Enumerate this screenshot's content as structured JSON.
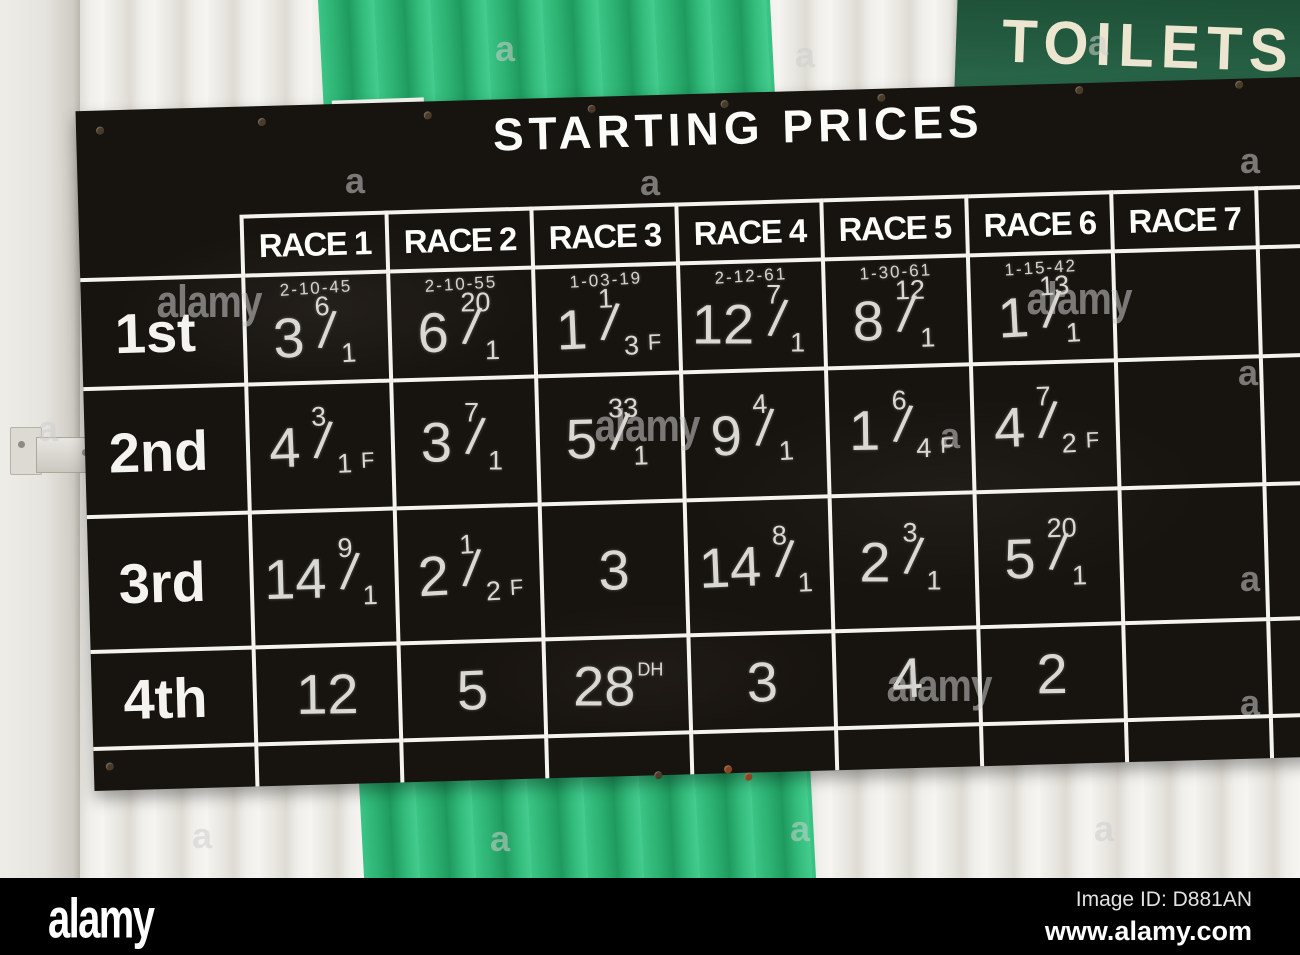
{
  "photo": {
    "toilets_sign": "TOILETS",
    "board_title": "STARTING PRICES",
    "row_labels": [
      "1st",
      "2nd",
      "3rd",
      "4th"
    ],
    "races": [
      {
        "label": "RACE 1",
        "time": "2-10-45",
        "results": [
          {
            "num": "3",
            "odds": "6/1"
          },
          {
            "num": "4",
            "odds": "3/1",
            "fav": true
          },
          {
            "num": "14",
            "odds": "9/1"
          },
          {
            "num": "12"
          }
        ]
      },
      {
        "label": "RACE 2",
        "time": "2-10-55",
        "results": [
          {
            "num": "6",
            "odds": "20/1"
          },
          {
            "num": "3",
            "odds": "7/1"
          },
          {
            "num": "2",
            "odds": "1/2",
            "fav": true
          },
          {
            "num": "5"
          }
        ]
      },
      {
        "label": "RACE 3",
        "time": "1-03-19",
        "results": [
          {
            "num": "1",
            "odds": "1/3",
            "fav": true
          },
          {
            "num": "5",
            "odds": "33/1"
          },
          {
            "num": "3"
          },
          {
            "num": "28",
            "note": "DH"
          }
        ]
      },
      {
        "label": "RACE 4",
        "time": "2-12-61",
        "results": [
          {
            "num": "12",
            "odds": "7/1"
          },
          {
            "num": "9",
            "odds": "4/1"
          },
          {
            "num": "14",
            "odds": "8/1"
          },
          {
            "num": "3"
          }
        ]
      },
      {
        "label": "RACE 5",
        "time": "1-30-61",
        "results": [
          {
            "num": "8",
            "odds": "12/1"
          },
          {
            "num": "1",
            "odds": "6/4",
            "fav": true
          },
          {
            "num": "2",
            "odds": "3/1"
          },
          {
            "num": "4"
          }
        ]
      },
      {
        "label": "RACE 6",
        "time": "1-15-42",
        "results": [
          {
            "num": "1",
            "odds": "13/1"
          },
          {
            "num": "4",
            "odds": "7/2",
            "fav": true
          },
          {
            "num": "5",
            "odds": "20/1"
          },
          {
            "num": "2"
          }
        ]
      },
      {
        "label": "RACE 7",
        "time": "",
        "results": [
          {},
          {},
          {},
          {}
        ]
      }
    ]
  },
  "watermark": {
    "brand": "alamy",
    "tile_letter": "a",
    "bar_logo": "alamy",
    "image_id_label": "Image ID: D881AN",
    "url": "www.alamy.com"
  }
}
